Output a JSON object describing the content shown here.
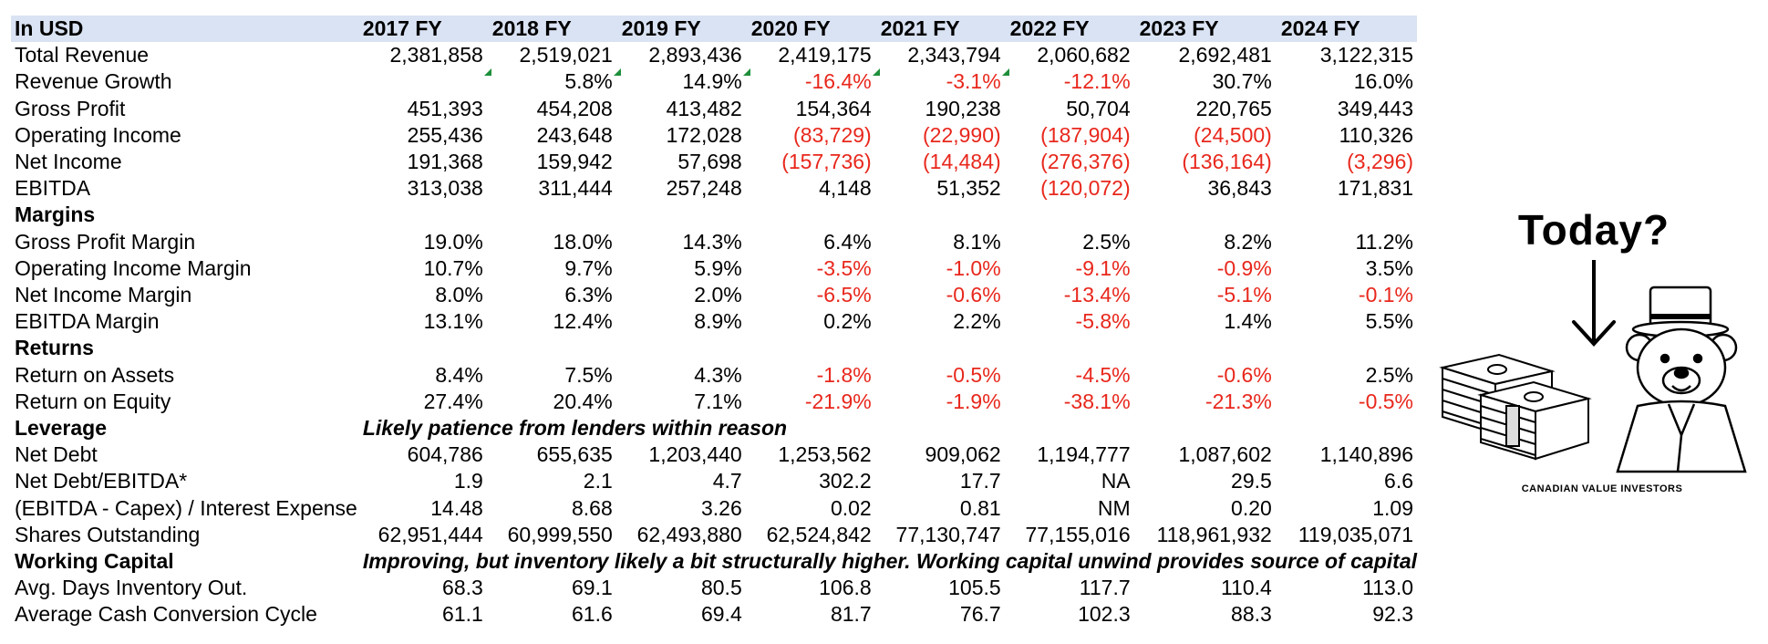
{
  "header": {
    "currency": "In USD",
    "years": [
      "2017 FY",
      "2018 FY",
      "2019 FY",
      "2020 FY",
      "2021 FY",
      "2022 FY",
      "2023 FY",
      "2024 FY"
    ]
  },
  "rows": [
    {
      "type": "data",
      "label": "Total Revenue",
      "values": [
        "2,381,858",
        "2,519,021",
        "2,893,436",
        "2,419,175",
        "2,343,794",
        "2,060,682",
        "2,692,481",
        "3,122,315"
      ]
    },
    {
      "type": "data",
      "label": "Revenue Growth",
      "values": [
        "",
        "5.8%",
        "14.9%",
        "-16.4%",
        "-3.1%",
        "-12.1%",
        "30.7%",
        "16.0%"
      ],
      "markers": [
        true,
        true,
        true,
        true,
        true,
        false,
        false,
        false
      ]
    },
    {
      "type": "data",
      "label": "Gross Profit",
      "values": [
        "451,393",
        "454,208",
        "413,482",
        "154,364",
        "190,238",
        "50,704",
        "220,765",
        "349,443"
      ]
    },
    {
      "type": "data",
      "label": "Operating Income",
      "values": [
        "255,436",
        "243,648",
        "172,028",
        "(83,729)",
        "(22,990)",
        "(187,904)",
        "(24,500)",
        "110,326"
      ]
    },
    {
      "type": "data",
      "label": "Net Income",
      "values": [
        "191,368",
        "159,942",
        "57,698",
        "(157,736)",
        "(14,484)",
        "(276,376)",
        "(136,164)",
        "(3,296)"
      ]
    },
    {
      "type": "data",
      "label": "EBITDA",
      "values": [
        "313,038",
        "311,444",
        "257,248",
        "4,148",
        "51,352",
        "(120,072)",
        "36,843",
        "171,831"
      ]
    },
    {
      "type": "section",
      "label": "Margins",
      "note": ""
    },
    {
      "type": "data",
      "label": "Gross Profit Margin",
      "values": [
        "19.0%",
        "18.0%",
        "14.3%",
        "6.4%",
        "8.1%",
        "2.5%",
        "8.2%",
        "11.2%"
      ]
    },
    {
      "type": "data",
      "label": "Operating Income Margin",
      "values": [
        "10.7%",
        "9.7%",
        "5.9%",
        "-3.5%",
        "-1.0%",
        "-9.1%",
        "-0.9%",
        "3.5%"
      ]
    },
    {
      "type": "data",
      "label": "Net Income Margin",
      "values": [
        "8.0%",
        "6.3%",
        "2.0%",
        "-6.5%",
        "-0.6%",
        "-13.4%",
        "-5.1%",
        "-0.1%"
      ]
    },
    {
      "type": "data",
      "label": "EBITDA Margin",
      "values": [
        "13.1%",
        "12.4%",
        "8.9%",
        "0.2%",
        "2.2%",
        "-5.8%",
        "1.4%",
        "5.5%"
      ]
    },
    {
      "type": "section",
      "label": "Returns",
      "note": ""
    },
    {
      "type": "data",
      "label": "Return on Assets",
      "values": [
        "8.4%",
        "7.5%",
        "4.3%",
        "-1.8%",
        "-0.5%",
        "-4.5%",
        "-0.6%",
        "2.5%"
      ]
    },
    {
      "type": "data",
      "label": "Return on Equity",
      "values": [
        "27.4%",
        "20.4%",
        "7.1%",
        "-21.9%",
        "-1.9%",
        "-38.1%",
        "-21.3%",
        "-0.5%"
      ]
    },
    {
      "type": "section",
      "label": "Leverage",
      "note": "Likely patience from lenders within reason"
    },
    {
      "type": "data",
      "label": "Net Debt",
      "values": [
        "604,786",
        "655,635",
        "1,203,440",
        "1,253,562",
        "909,062",
        "1,194,777",
        "1,087,602",
        "1,140,896"
      ]
    },
    {
      "type": "data",
      "label": "Net Debt/EBITDA*",
      "values": [
        "1.9",
        "2.1",
        "4.7",
        "302.2",
        "17.7",
        "NA",
        "29.5",
        "6.6"
      ]
    },
    {
      "type": "data",
      "label": "(EBITDA - Capex) / Interest Expense",
      "values": [
        "14.48",
        "8.68",
        "3.26",
        "0.02",
        "0.81",
        "NM",
        "0.20",
        "1.09"
      ]
    },
    {
      "type": "data",
      "label": "Shares Outstanding",
      "values": [
        "62,951,444",
        "60,999,550",
        "62,493,880",
        "62,524,842",
        "77,130,747",
        "77,155,016",
        "118,961,932",
        "119,035,071"
      ]
    },
    {
      "type": "section",
      "label": "Working Capital",
      "note": "Improving, but inventory likely a bit structurally higher. Working capital unwind provides source of capital"
    },
    {
      "type": "data",
      "label": "Avg. Days Inventory Out.",
      "values": [
        "68.3",
        "69.1",
        "80.5",
        "106.8",
        "105.5",
        "117.7",
        "110.4",
        "113.0"
      ]
    },
    {
      "type": "data",
      "label": "Average Cash Conversion Cycle",
      "values": [
        "61.1",
        "61.6",
        "69.4",
        "81.7",
        "76.7",
        "102.3",
        "88.3",
        "92.3"
      ]
    }
  ],
  "logo": {
    "title": "Today?",
    "caption": "CANADIAN VALUE INVESTORS",
    "icon_money": "money-stack-icon",
    "icon_bear": "bear-top-hat-icon",
    "icon_arrow": "arrow-down-icon"
  },
  "colors": {
    "header_bg": "#dae3f3",
    "negative": "#e8271c",
    "marker": "#1e8f3a"
  }
}
